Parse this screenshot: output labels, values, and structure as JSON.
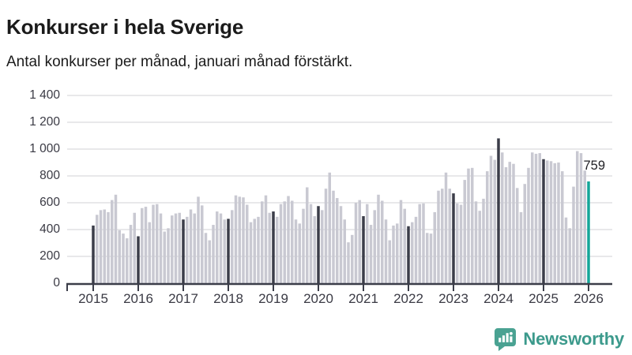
{
  "header": {
    "title": "Konkurser i hela Sverige",
    "subtitle": "Antal konkurser per månad, januari månad förstärkt."
  },
  "chart_data": {
    "type": "bar",
    "title": "Konkurser i hela Sverige",
    "subtitle": "Antal konkurser per månad, januari månad förstärkt.",
    "ylabel": "",
    "xlabel": "",
    "ylim": [
      0,
      1400
    ],
    "grid": true,
    "y_ticks": [
      1400,
      1200,
      1000,
      800,
      600,
      400,
      200,
      0
    ],
    "y_tick_labels": [
      "1 400",
      "1 200",
      "1 000",
      "800",
      "600",
      "400",
      "200",
      "0"
    ],
    "x_tick_labels": [
      "2015",
      "2016",
      "2017",
      "2018",
      "2019",
      "2020",
      "2021",
      "2022",
      "2023",
      "2024",
      "2025",
      "2026"
    ],
    "month_order": [
      "jan",
      "feb",
      "mar",
      "apr",
      "maj",
      "jun",
      "jul",
      "aug",
      "sep",
      "okt",
      "nov",
      "dec"
    ],
    "years": [
      {
        "label": "2015",
        "values": [
          430,
          510,
          545,
          550,
          530,
          620,
          660,
          395,
          370,
          335,
          435,
          525
        ]
      },
      {
        "label": "2016",
        "values": [
          350,
          560,
          570,
          455,
          585,
          590,
          520,
          385,
          410,
          505,
          520,
          525
        ]
      },
      {
        "label": "2017",
        "values": [
          475,
          495,
          550,
          520,
          645,
          580,
          375,
          320,
          435,
          535,
          520,
          475
        ]
      },
      {
        "label": "2018",
        "values": [
          480,
          545,
          655,
          645,
          640,
          585,
          455,
          480,
          495,
          610,
          655,
          525
        ]
      },
      {
        "label": "2019",
        "values": [
          535,
          495,
          590,
          610,
          650,
          615,
          475,
          445,
          555,
          715,
          590,
          500
        ]
      },
      {
        "label": "2020",
        "values": [
          575,
          545,
          705,
          825,
          690,
          635,
          575,
          475,
          305,
          360,
          600,
          620
        ]
      },
      {
        "label": "2021",
        "values": [
          500,
          590,
          435,
          545,
          660,
          615,
          475,
          320,
          430,
          445,
          620,
          555
        ]
      },
      {
        "label": "2022",
        "values": [
          425,
          455,
          495,
          590,
          595,
          375,
          370,
          530,
          690,
          705,
          825,
          705
        ]
      },
      {
        "label": "2023",
        "values": [
          670,
          595,
          585,
          770,
          855,
          860,
          610,
          540,
          630,
          835,
          950,
          920
        ]
      },
      {
        "label": "2024",
        "values": [
          1080,
          975,
          865,
          905,
          890,
          710,
          530,
          740,
          860,
          975,
          965,
          970
        ]
      },
      {
        "label": "2025",
        "values": [
          925,
          915,
          910,
          895,
          900,
          835,
          490,
          410,
          720,
          985,
          970,
          840
        ]
      },
      {
        "label": "2026",
        "values": [
          759
        ]
      }
    ],
    "highlight_rule": "january bars dark, latest value (jan 2026) teal",
    "annotation": {
      "text": "759",
      "year": "2026",
      "month": "jan",
      "value": 759
    },
    "colors": {
      "january": "#3b3d49",
      "month": "#c9c9d2",
      "highlight": "#14a699",
      "gridline": "#e1e1e3",
      "axis": "#3b3d49"
    },
    "legend": null
  },
  "footer": {
    "brand": "Newsworthy",
    "logo_icon": "bar-chart-speech-bubble-icon",
    "icon_color": "#4aa292",
    "text_color": "#3c9a8c"
  }
}
